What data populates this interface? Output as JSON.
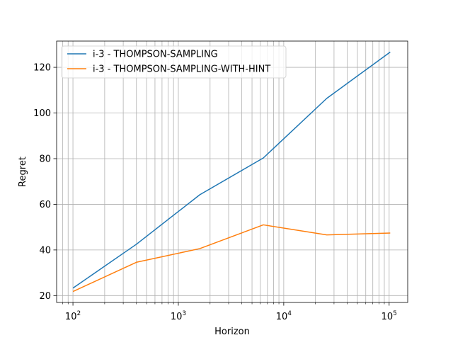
{
  "chart_data": {
    "type": "line",
    "xlabel": "Horizon",
    "ylabel": "Regret",
    "xscale": "log",
    "xlim": [
      70,
      150000
    ],
    "ylim": [
      17,
      131.5
    ],
    "xticks": [
      100,
      1000,
      10000,
      100000
    ],
    "xtick_labels": [
      {
        "base": "10",
        "exp": "2"
      },
      {
        "base": "10",
        "exp": "3"
      },
      {
        "base": "10",
        "exp": "4"
      },
      {
        "base": "10",
        "exp": "5"
      }
    ],
    "yticks": [
      20,
      40,
      60,
      80,
      100,
      120
    ],
    "ytick_labels": [
      "20",
      "40",
      "60",
      "80",
      "100",
      "120"
    ],
    "grid": true,
    "grid_minor_x": true,
    "legend_position": "top-left",
    "x": [
      100,
      400,
      1600,
      6400,
      25600,
      102400
    ],
    "series": [
      {
        "name": "i-3 - THOMPSON-SAMPLING",
        "color": "#1f77b4",
        "values": [
          23.3,
          42.5,
          64.2,
          80.3,
          106.4,
          126.7
        ]
      },
      {
        "name": "i-3 - THOMPSON-SAMPLING-WITH-HINT",
        "color": "#ff7f0e",
        "values": [
          21.8,
          34.6,
          40.6,
          51.0,
          46.6,
          47.4
        ]
      }
    ]
  }
}
